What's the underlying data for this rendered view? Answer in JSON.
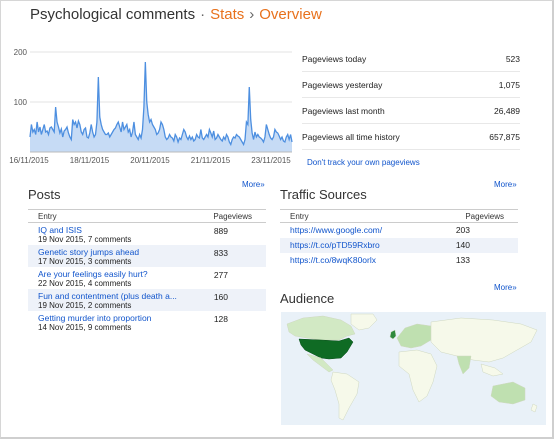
{
  "header": {
    "blog_title": "Psychological comments",
    "separator": "·",
    "crumb_stats": "Stats",
    "arrow": "›",
    "crumb_overview": "Overview"
  },
  "chart_data": {
    "type": "area",
    "title": "",
    "xlabel": "",
    "ylabel": "",
    "ylim": [
      0,
      200
    ],
    "yticks": [
      100,
      200
    ],
    "x_tick_labels": [
      "16/11/2015",
      "18/11/2015",
      "20/11/2015",
      "21/11/2015",
      "23/11/2015"
    ],
    "series": [
      {
        "values": [
          30,
          55,
          40,
          45,
          35,
          60,
          40,
          50,
          35,
          45,
          55,
          40,
          42,
          35,
          48,
          50,
          45,
          40,
          90,
          60,
          50,
          38,
          46,
          30,
          42,
          45,
          50,
          38,
          30,
          25,
          65,
          55,
          60,
          48,
          62,
          55,
          40,
          35,
          45,
          48,
          30,
          28,
          38,
          55,
          40,
          30,
          35,
          60,
          150,
          70,
          55,
          45,
          40,
          35,
          35,
          38,
          30,
          35,
          40,
          45,
          48,
          55,
          60,
          50,
          40,
          60,
          45,
          50,
          55,
          40,
          45,
          30,
          40,
          60,
          35,
          30,
          25,
          35,
          28,
          45,
          90,
          180,
          100,
          75,
          60,
          65,
          55,
          50,
          45,
          35,
          38,
          45,
          60,
          55,
          45,
          30,
          25,
          28,
          35,
          30,
          28,
          22,
          35,
          30,
          20,
          28,
          25,
          35,
          45,
          40,
          30,
          25,
          32,
          25,
          30,
          22,
          25,
          35,
          30,
          28,
          45,
          28,
          25,
          30,
          35,
          30,
          45,
          38,
          30,
          42,
          25,
          28,
          35,
          30,
          25,
          22,
          30,
          25,
          35,
          30,
          20,
          15,
          25,
          30,
          28,
          35,
          32,
          30,
          25,
          20,
          15,
          25,
          60,
          55,
          130,
          65,
          38,
          25,
          40,
          30,
          35,
          30,
          28,
          25,
          20,
          30,
          55,
          45,
          35,
          28,
          25,
          30,
          45,
          40,
          38,
          32,
          25,
          30,
          22,
          20,
          30,
          35,
          25,
          35,
          20
        ]
      }
    ],
    "colors": {
      "fill": "#c6dbf5",
      "line": "#4d8fe0"
    }
  },
  "stats": [
    {
      "label": "Pageviews today",
      "value": "523"
    },
    {
      "label": "Pageviews yesterday",
      "value": "1,075"
    },
    {
      "label": "Pageviews last month",
      "value": "26,489"
    },
    {
      "label": "Pageviews all time history",
      "value": "657,875"
    }
  ],
  "dont_track_link": "Don't track your own pageviews",
  "more_label": "More»",
  "posts": {
    "title": "Posts",
    "col_entry": "Entry",
    "col_pageviews": "Pageviews",
    "rows": [
      {
        "title": "IQ and ISIS",
        "meta": "19 Nov 2015, 7 comments",
        "views": "889"
      },
      {
        "title": "Genetic story jumps ahead",
        "meta": "17 Nov 2015, 3 comments",
        "views": "833"
      },
      {
        "title": "Are your feelings easily hurt?",
        "meta": "22 Nov 2015, 4 comments",
        "views": "277"
      },
      {
        "title": "Fun and contentment (plus death a...",
        "meta": "19 Nov 2015, 2 comments",
        "views": "160"
      },
      {
        "title": "Getting murder into proportion",
        "meta": "14 Nov 2015, 9 comments",
        "views": "128"
      }
    ]
  },
  "traffic": {
    "title": "Traffic Sources",
    "col_entry": "Entry",
    "col_pageviews": "Pageviews",
    "rows": [
      {
        "title": "https://www.google.com/",
        "views": "203"
      },
      {
        "title": "https://t.co/pTD59Rxbro",
        "views": "140"
      },
      {
        "title": "https://t.co/8wqK80orlx",
        "views": "133"
      }
    ]
  },
  "audience": {
    "title": "Audience",
    "colors": {
      "ocean": "#e9f1f8",
      "land": "#f6f9ea",
      "usa": "#0f6b24",
      "uk": "#2f8a3c",
      "canada": "#d2e9c4",
      "mid": "#bfe0b0",
      "border": "#cfd8c0"
    }
  }
}
